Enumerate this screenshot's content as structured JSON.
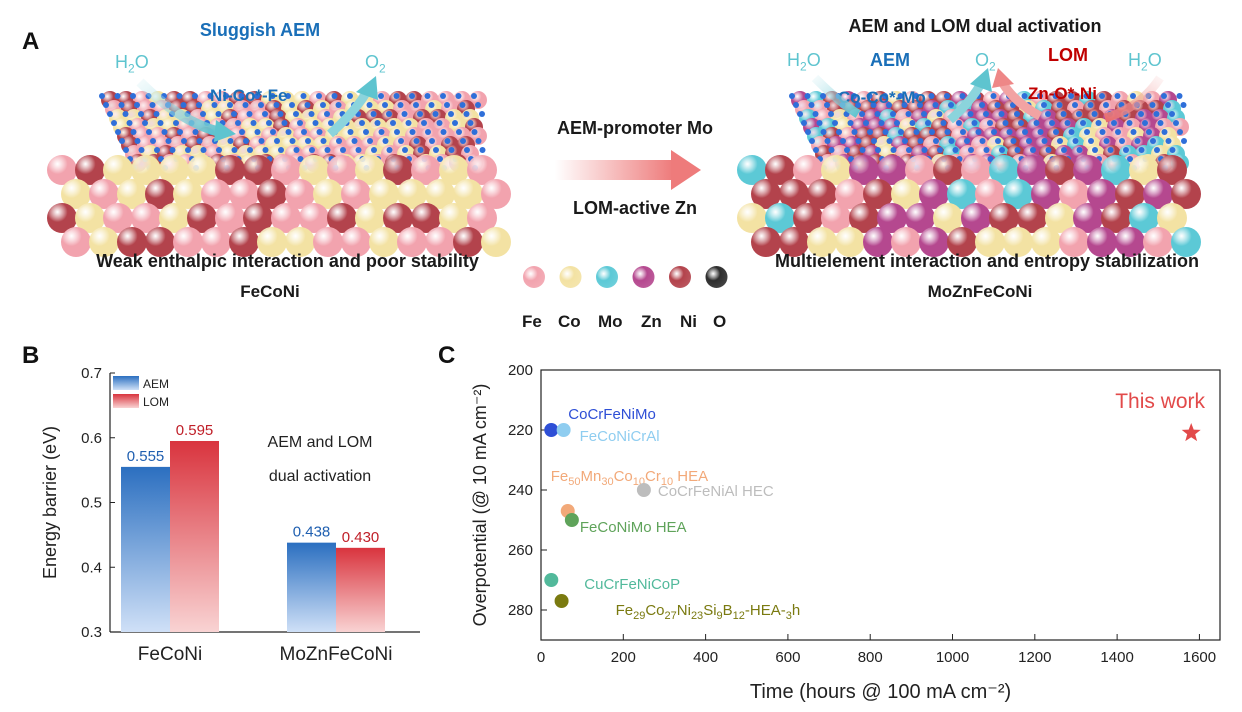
{
  "panel_a": {
    "label": "A",
    "left": {
      "title": "Sluggish AEM",
      "h2o": "H2O",
      "o2": "O2",
      "site": "Ni-Co*-Fe",
      "caption": "Weak enthalpic interaction and poor stability",
      "material": "FeCoNi"
    },
    "middle": {
      "top": "AEM-promoter Mo",
      "bottom": "LOM-active Zn"
    },
    "right": {
      "title": "AEM and LOM dual activation",
      "aem": "AEM",
      "lom": "LOM",
      "h2o_left": "H2O",
      "o2": "O2",
      "h2o_right": "H2O",
      "aem_site": "Co-Co*-Mo",
      "lom_site": "Zn-O*-Ni",
      "caption": "Multielement interaction and entropy stabilization",
      "material": "MoZnFeCoNi"
    },
    "legend": [
      {
        "el": "Fe",
        "color": "#f2a3ae"
      },
      {
        "el": "Co",
        "color": "#f3e2a3"
      },
      {
        "el": "Mo",
        "color": "#5cc9d6"
      },
      {
        "el": "Zn",
        "color": "#b5488f"
      },
      {
        "el": "Ni",
        "color": "#b3434c"
      },
      {
        "el": "O",
        "color": "#2d2d2d"
      }
    ],
    "colors": {
      "fe": "#f2a3ae",
      "co": "#f3e2a3",
      "mo": "#5cc9d6",
      "zn": "#b5488f",
      "ni": "#b3434c",
      "o": "#2f6fd9"
    }
  },
  "chart_data": [
    {
      "panel": "B",
      "type": "bar",
      "categories": [
        "FeCoNi",
        "MoZnFeCoNi"
      ],
      "series": [
        {
          "name": "AEM",
          "values": [
            0.555,
            0.438
          ],
          "color": "#2b6fc0"
        },
        {
          "name": "LOM",
          "values": [
            0.595,
            0.43
          ],
          "color": "#d9343e"
        }
      ],
      "value_labels": [
        [
          "0.555",
          "0.438"
        ],
        [
          "0.595",
          "0.430"
        ]
      ],
      "ylabel": "Energy barrier (eV)",
      "ylim": [
        0.3,
        0.7
      ],
      "yticks": [
        "0.3",
        "0.4",
        "0.5",
        "0.6",
        "0.7"
      ],
      "annotation": [
        "AEM and LOM",
        "dual activation"
      ],
      "legend_position": "top-left"
    },
    {
      "panel": "C",
      "type": "scatter",
      "xlabel": "Time (hours @ 100 mA cm⁻²)",
      "ylabel": "Overpotential (@ 10 mA cm⁻²)",
      "xlim": [
        0,
        1650
      ],
      "ylim": [
        290,
        200
      ],
      "y_inverted": true,
      "xticks": [
        "0",
        "200",
        "400",
        "600",
        "800",
        "1000",
        "1200",
        "1400",
        "1600"
      ],
      "yticks": [
        "200",
        "220",
        "240",
        "260",
        "280"
      ],
      "points": [
        {
          "label": "CoCrFeNiMo",
          "x": 25,
          "y": 220,
          "color": "#2e4fd6"
        },
        {
          "label": "FeCoNiCrAl",
          "x": 55,
          "y": 220,
          "color": "#8fcdf0"
        },
        {
          "label": "Fe50Mn30Co10Cr10 HEA",
          "x": 65,
          "y": 247,
          "color": "#f2a979"
        },
        {
          "label": "CoCrFeNiAl HEC",
          "x": 250,
          "y": 240,
          "color": "#bdbdbd"
        },
        {
          "label": "FeCoNiMo HEA",
          "x": 75,
          "y": 250,
          "color": "#5fa35a"
        },
        {
          "label": "CuCrFeNiCoP",
          "x": 25,
          "y": 270,
          "color": "#52b99b"
        },
        {
          "label": "Fe29Co27Ni23Si9B12-HEA-3h",
          "x": 50,
          "y": 277,
          "color": "#7a7a10"
        },
        {
          "label": "This work",
          "x": 1580,
          "y": 221,
          "color": "#e24a4a",
          "marker": "star"
        }
      ]
    }
  ]
}
